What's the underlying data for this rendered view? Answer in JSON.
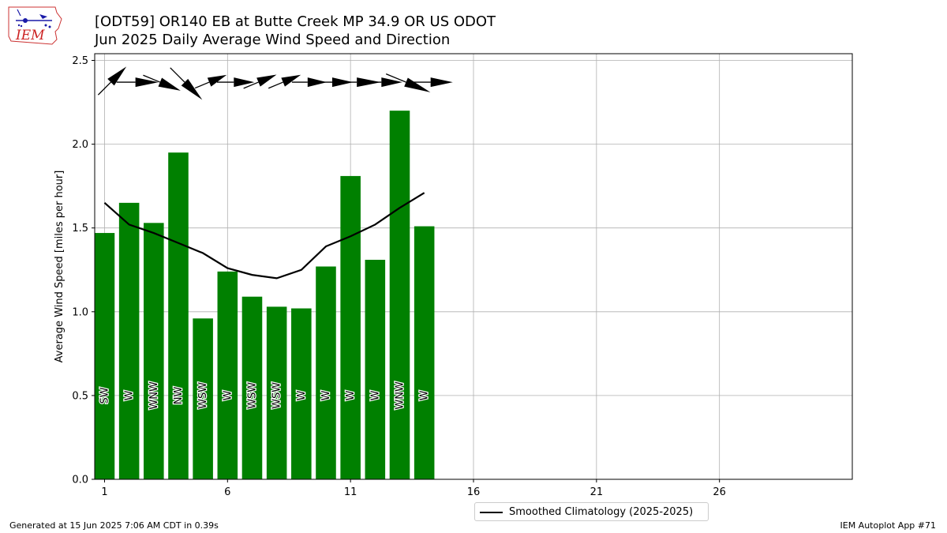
{
  "logo": {
    "text": "IEM"
  },
  "title_line1": "[ODT59] OR140 EB at Butte Creek MP 34.9  OR US ODOT",
  "title_line2": "Jun 2025 Daily Average Wind Speed and Direction",
  "footer": {
    "left": "Generated at 15 Jun 2025 7:06 AM CDT in 0.39s",
    "right": "IEM Autoplot App #71"
  },
  "colors": {
    "bar": "#008000",
    "climo_line": "#000000",
    "grid": "#b0b0b0"
  },
  "chart_data": {
    "type": "bar",
    "ylabel": "Average Wind Speed [miles per hour]",
    "xlabel": "",
    "xlim": [
      0.6,
      31.4
    ],
    "ylim": [
      0,
      2.54
    ],
    "x_ticks": [
      1,
      6,
      11,
      16,
      21,
      26
    ],
    "y_ticks": [
      0.0,
      0.5,
      1.0,
      1.5,
      2.0,
      2.5
    ],
    "y_tick_labels": [
      "0.0",
      "0.5",
      "1.0",
      "1.5",
      "2.0",
      "2.5"
    ],
    "grid": true,
    "legend_placement": "bottom-center",
    "series": [
      {
        "type": "bar",
        "days": [
          1,
          2,
          3,
          4,
          5,
          6,
          7,
          8,
          9,
          10,
          11,
          12,
          13,
          14
        ],
        "values": [
          1.47,
          1.65,
          1.53,
          1.95,
          0.96,
          1.24,
          1.09,
          1.03,
          1.02,
          1.27,
          1.81,
          1.31,
          2.2,
          1.51
        ],
        "directions": [
          "SW",
          "W",
          "WNW",
          "NW",
          "WSW",
          "W",
          "WSW",
          "WSW",
          "W",
          "W",
          "W",
          "W",
          "WNW",
          "W"
        ],
        "wind_from_degrees": [
          225,
          270,
          292.5,
          315,
          247.5,
          270,
          247.5,
          247.5,
          270,
          270,
          270,
          270,
          292.5,
          270
        ]
      },
      {
        "type": "line",
        "name": "Smoothed Climatology (2025-2025)",
        "days": [
          1,
          2,
          3,
          4,
          5,
          6,
          7,
          8,
          9,
          10,
          11,
          12,
          13,
          14
        ],
        "values": [
          1.65,
          1.52,
          1.47,
          1.41,
          1.35,
          1.26,
          1.22,
          1.2,
          1.25,
          1.39,
          1.45,
          1.52,
          1.62,
          1.71
        ]
      }
    ]
  }
}
